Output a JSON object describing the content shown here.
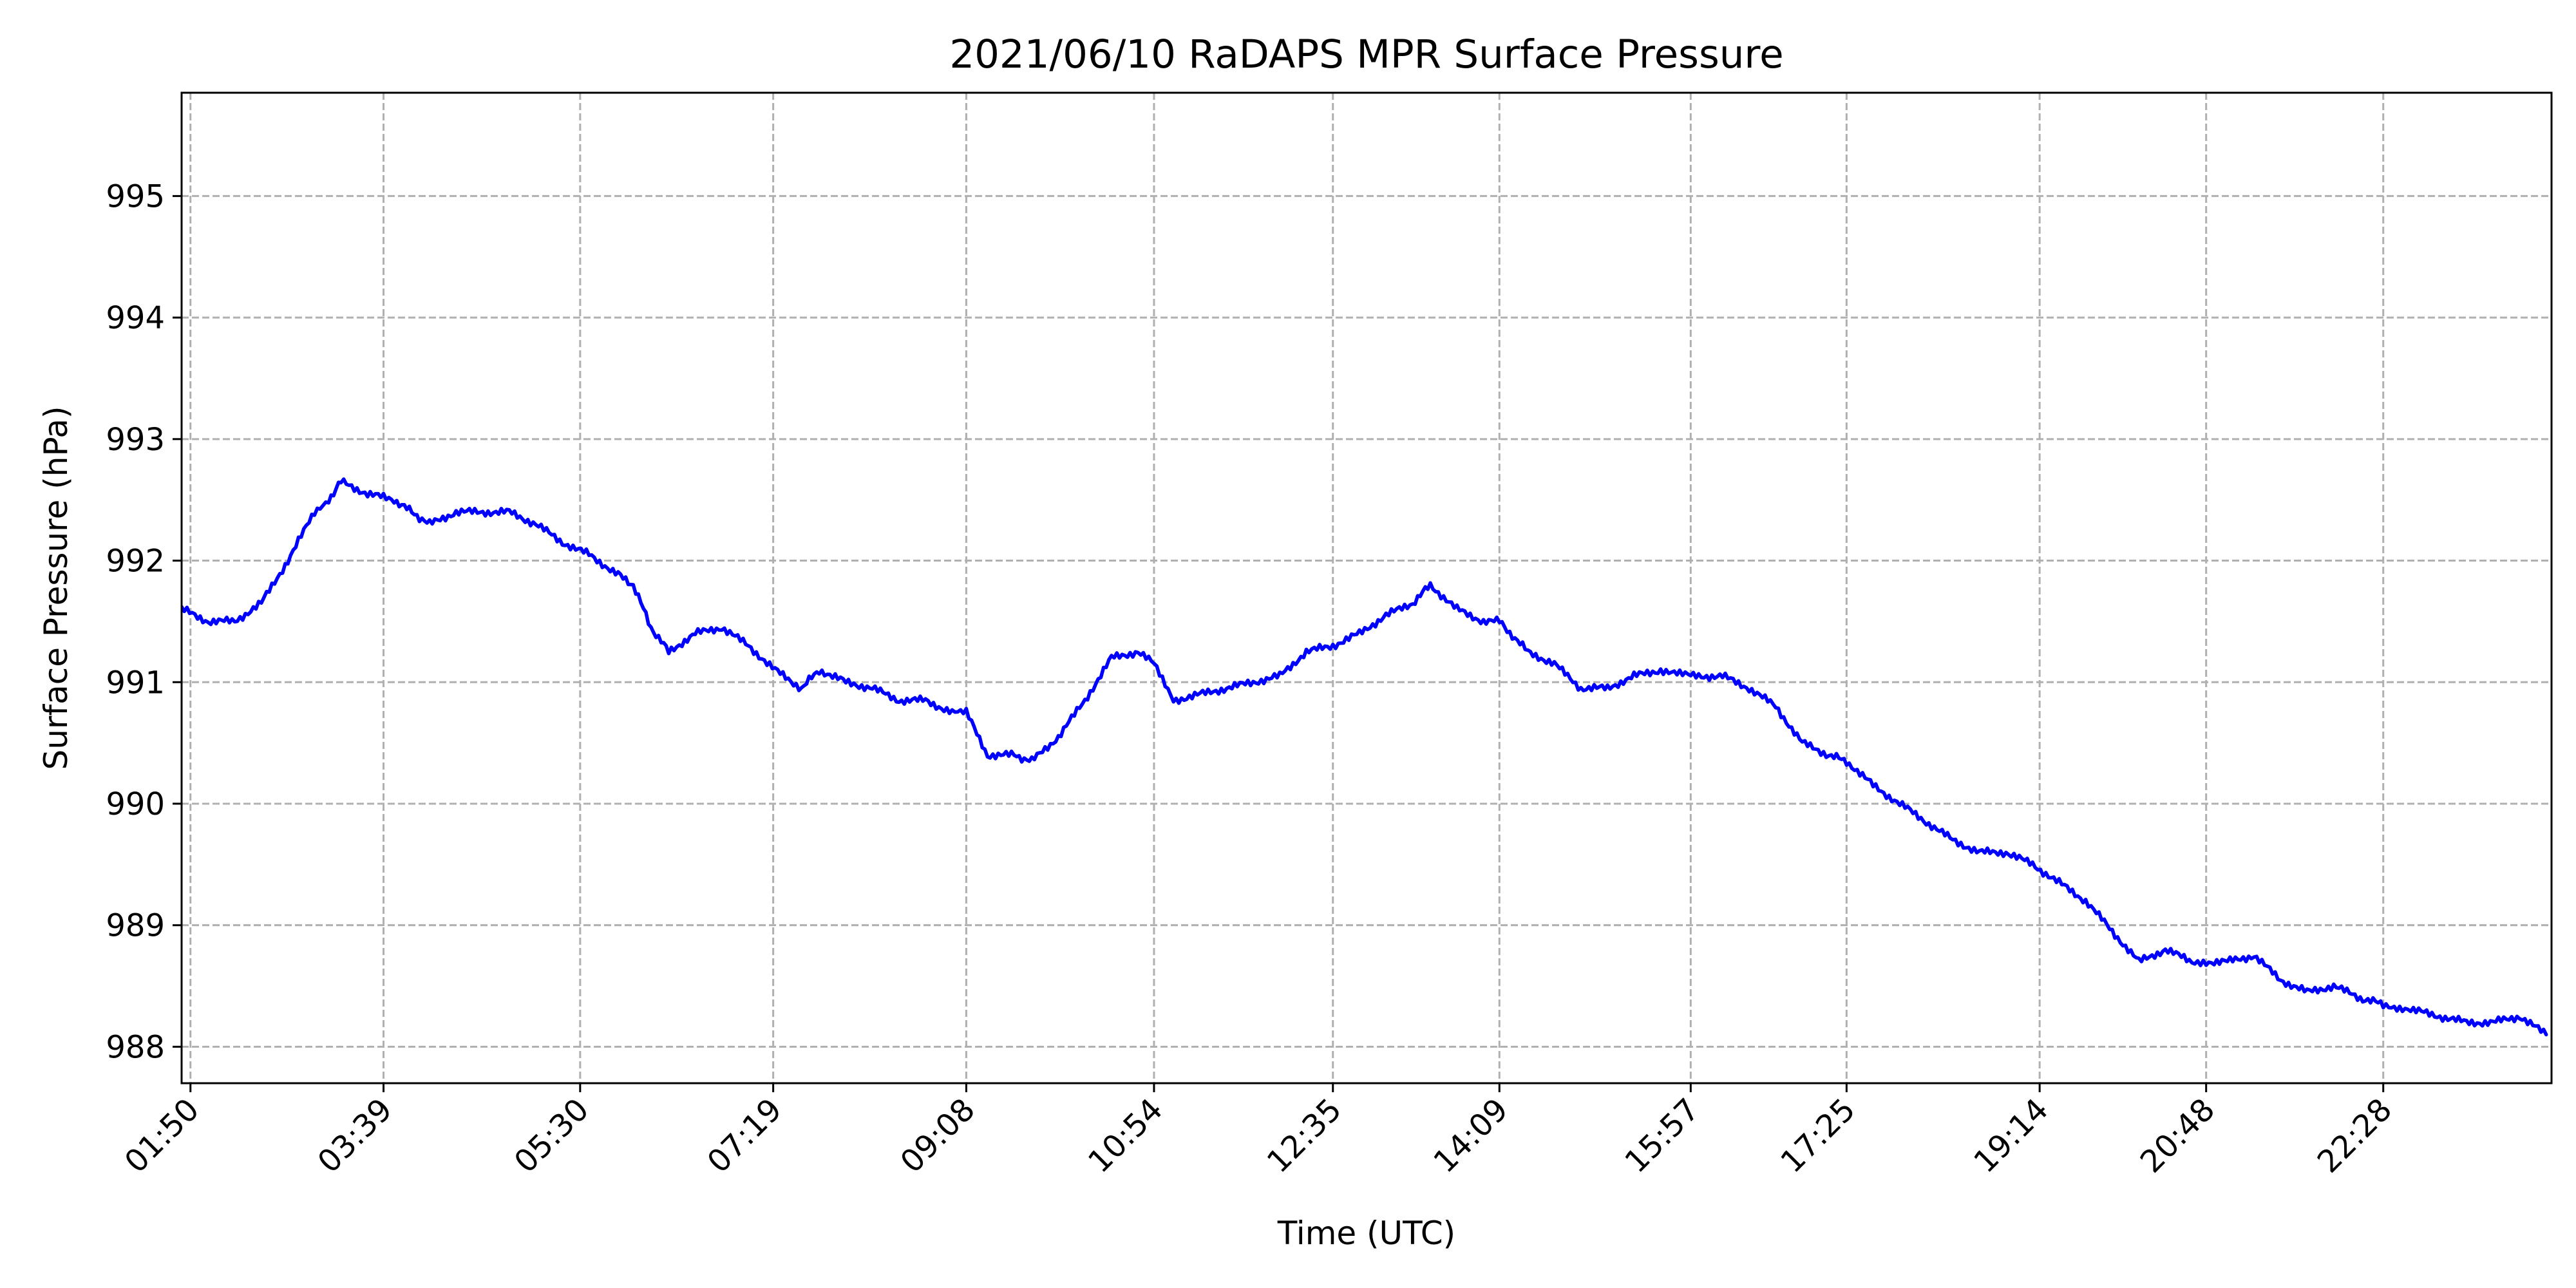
{
  "chart_data": {
    "type": "line",
    "title": "2021/06/10 RaDAPS MPR Surface Pressure",
    "xlabel": "Time (UTC)",
    "ylabel": "Surface Pressure (hPa)",
    "x_unit": "time of day (UTC)",
    "xlim": [
      "01:45",
      "24:03"
    ],
    "ylim": [
      987.7,
      995.85
    ],
    "grid": true,
    "x_ticks": [
      "01:50",
      "03:39",
      "05:30",
      "07:19",
      "09:08",
      "10:54",
      "12:35",
      "14:09",
      "15:57",
      "17:25",
      "19:14",
      "20:48",
      "22:28"
    ],
    "y_ticks": [
      988,
      989,
      990,
      991,
      992,
      993,
      994,
      995
    ],
    "series": [
      {
        "color": "#0000ff",
        "x": [
          "01:45",
          "02:00",
          "02:15",
          "02:30",
          "02:45",
          "03:00",
          "03:08",
          "03:15",
          "03:30",
          "03:45",
          "03:55",
          "04:05",
          "04:20",
          "04:35",
          "04:50",
          "05:05",
          "05:20",
          "05:35",
          "05:50",
          "06:00",
          "06:10",
          "06:20",
          "06:35",
          "06:50",
          "07:05",
          "07:20",
          "07:35",
          "07:45",
          "08:00",
          "08:15",
          "08:30",
          "08:45",
          "09:00",
          "09:08",
          "09:20",
          "09:35",
          "09:45",
          "10:00",
          "10:15",
          "10:30",
          "10:45",
          "10:54",
          "11:05",
          "11:20",
          "11:35",
          "11:50",
          "12:05",
          "12:20",
          "12:35",
          "12:50",
          "13:05",
          "13:20",
          "13:30",
          "13:45",
          "14:00",
          "14:09",
          "14:25",
          "14:40",
          "14:55",
          "15:10",
          "15:25",
          "15:40",
          "15:57",
          "16:15",
          "16:30",
          "16:45",
          "17:00",
          "17:15",
          "17:25",
          "17:40",
          "17:55",
          "18:10",
          "18:25",
          "18:40",
          "18:55",
          "19:10",
          "19:25",
          "19:40",
          "19:55",
          "20:10",
          "20:25",
          "20:40",
          "20:48",
          "21:00",
          "21:15",
          "21:30",
          "21:45",
          "22:00",
          "22:15",
          "22:28",
          "22:45",
          "23:00",
          "23:15",
          "23:30",
          "23:45",
          "24:00"
        ],
        "y": [
          991.6,
          991.5,
          991.5,
          991.65,
          992.0,
          992.4,
          992.5,
          992.65,
          992.55,
          992.5,
          992.4,
          992.3,
          992.4,
          992.4,
          992.4,
          992.3,
          992.15,
          992.05,
          991.9,
          991.8,
          991.45,
          991.25,
          991.4,
          991.45,
          991.3,
          991.1,
          990.95,
          991.1,
          991.0,
          990.95,
          990.85,
          990.85,
          990.75,
          990.75,
          990.4,
          990.4,
          990.35,
          990.55,
          990.85,
          991.2,
          991.25,
          991.15,
          990.85,
          990.9,
          990.95,
          991.0,
          991.05,
          991.25,
          991.3,
          991.4,
          991.55,
          991.65,
          991.8,
          991.6,
          991.5,
          991.5,
          991.25,
          991.15,
          990.95,
          990.95,
          991.05,
          991.1,
          991.05,
          991.05,
          990.95,
          990.8,
          990.5,
          990.4,
          990.35,
          990.15,
          990.0,
          989.85,
          989.7,
          989.6,
          989.6,
          989.5,
          989.35,
          989.2,
          988.95,
          988.7,
          988.8,
          988.7,
          988.7,
          988.7,
          988.75,
          988.55,
          988.45,
          988.5,
          988.4,
          988.35,
          988.3,
          988.25,
          988.2,
          988.2,
          988.25,
          988.1
        ]
      }
    ]
  }
}
